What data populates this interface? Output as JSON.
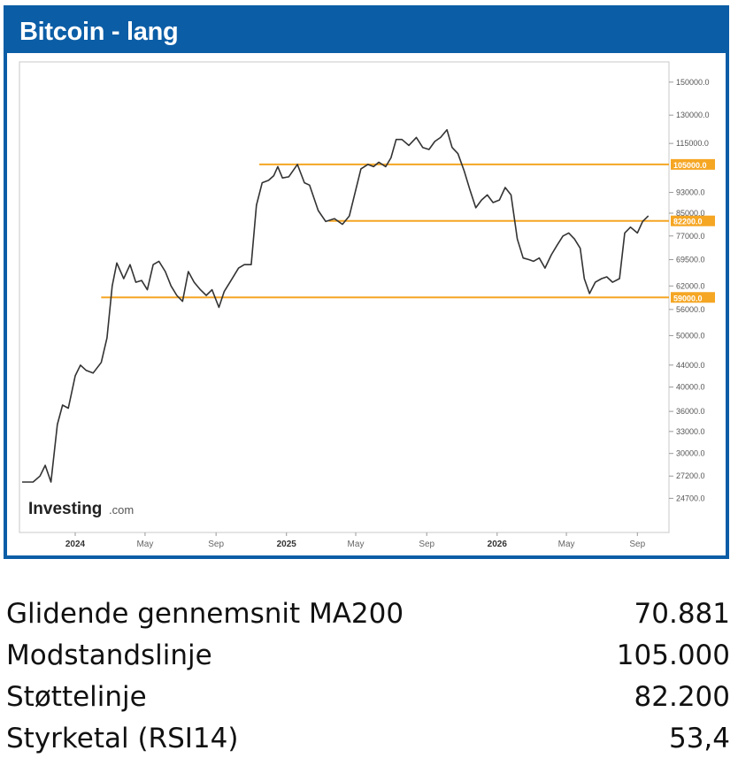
{
  "header": {
    "title": "Bitcoin - lang"
  },
  "branding": {
    "logo_text": "Investing",
    "logo_suffix": ".com"
  },
  "colors": {
    "frame": "#0b5da6",
    "level_line": "#f5a623",
    "price_line": "#333333"
  },
  "chart_data": {
    "type": "line",
    "title": "Bitcoin - lang",
    "xlabel": "",
    "ylabel": "",
    "y_scale": "log",
    "ylim": [
      23000,
      160000
    ],
    "x_range": [
      "2023-10-01",
      "2026-10-15"
    ],
    "x_ticks": [
      {
        "date": "2024-01-01",
        "label": "2024"
      },
      {
        "date": "2024-05-01",
        "label": "May"
      },
      {
        "date": "2024-09-01",
        "label": "Sep"
      },
      {
        "date": "2025-01-01",
        "label": "2025"
      },
      {
        "date": "2025-05-01",
        "label": "May"
      },
      {
        "date": "2025-09-01",
        "label": "Sep"
      },
      {
        "date": "2026-01-01",
        "label": "2026"
      },
      {
        "date": "2026-05-01",
        "label": "May"
      },
      {
        "date": "2026-09-01",
        "label": "Sep"
      }
    ],
    "y_ticks": [
      {
        "value": 150000,
        "label": "150000.0"
      },
      {
        "value": 130000,
        "label": "130000.0"
      },
      {
        "value": 115000,
        "label": "115000.0"
      },
      {
        "value": 93000,
        "label": "93000.0"
      },
      {
        "value": 85000,
        "label": "85000.0"
      },
      {
        "value": 77000,
        "label": "77000.0"
      },
      {
        "value": 69500,
        "label": "69500.0"
      },
      {
        "value": 62000,
        "label": "62000.0"
      },
      {
        "value": 56000,
        "label": "56000.0"
      },
      {
        "value": 50000,
        "label": "50000.0"
      },
      {
        "value": 44000,
        "label": "44000.0"
      },
      {
        "value": 40000,
        "label": "40000.0"
      },
      {
        "value": 36000,
        "label": "36000.0"
      },
      {
        "value": 33000,
        "label": "33000.0"
      },
      {
        "value": 30000,
        "label": "30000.0"
      },
      {
        "value": 27200,
        "label": "27200.0"
      },
      {
        "value": 24700,
        "label": "24700.0"
      }
    ],
    "levels": [
      {
        "value": 105000,
        "label": "105000.0",
        "start": "2024-11-15"
      },
      {
        "value": 82200,
        "label": "82200.0",
        "start": "2025-03-15"
      },
      {
        "value": 59000,
        "label": "59000.0",
        "start": "2024-02-15"
      }
    ],
    "series": [
      {
        "x": [
          "2023-10-01",
          "2023-10-20",
          "2023-11-01",
          "2023-11-10",
          "2023-11-20",
          "2023-12-01",
          "2023-12-10",
          "2023-12-20",
          "2024-01-01",
          "2024-01-10",
          "2024-01-20",
          "2024-02-01",
          "2024-02-15",
          "2024-02-25",
          "2024-03-05",
          "2024-03-13",
          "2024-03-25",
          "2024-04-05",
          "2024-04-15",
          "2024-04-25",
          "2024-05-05",
          "2024-05-15",
          "2024-05-25",
          "2024-06-05",
          "2024-06-15",
          "2024-06-25",
          "2024-07-05",
          "2024-07-15",
          "2024-07-25",
          "2024-08-05",
          "2024-08-15",
          "2024-08-25",
          "2024-09-06",
          "2024-09-15",
          "2024-09-27",
          "2024-10-10",
          "2024-10-20",
          "2024-11-01",
          "2024-11-10",
          "2024-11-20",
          "2024-12-01",
          "2024-12-10",
          "2024-12-17",
          "2024-12-25",
          "2025-01-05",
          "2025-01-20",
          "2025-02-01",
          "2025-02-10",
          "2025-02-25",
          "2025-03-10",
          "2025-03-25",
          "2025-04-08",
          "2025-04-20",
          "2025-05-01",
          "2025-05-10",
          "2025-05-22",
          "2025-06-01",
          "2025-06-10",
          "2025-06-22",
          "2025-07-01",
          "2025-07-10",
          "2025-07-20",
          "2025-08-01",
          "2025-08-14",
          "2025-08-25",
          "2025-09-05",
          "2025-09-15",
          "2025-09-25",
          "2025-10-06",
          "2025-10-15",
          "2025-10-25",
          "2025-11-05",
          "2025-11-15",
          "2025-11-25",
          "2025-12-05",
          "2025-12-15",
          "2025-12-25",
          "2026-01-05",
          "2026-01-15",
          "2026-01-25",
          "2026-02-05",
          "2026-02-15",
          "2026-02-25",
          "2026-03-05",
          "2026-03-15",
          "2026-03-25",
          "2026-04-05",
          "2026-04-15",
          "2026-04-25",
          "2026-05-05",
          "2026-05-15",
          "2026-05-25",
          "2026-06-01",
          "2026-06-10",
          "2026-06-20",
          "2026-07-01",
          "2026-07-10",
          "2026-07-20",
          "2026-08-01",
          "2026-08-10",
          "2026-08-20",
          "2026-09-01",
          "2026-09-10",
          "2026-09-20"
        ],
        "y": [
          26500,
          26500,
          27200,
          28500,
          26500,
          34000,
          37000,
          36500,
          42000,
          44000,
          43000,
          42500,
          44500,
          49500,
          62000,
          68500,
          64000,
          68000,
          63000,
          63500,
          61000,
          68000,
          69000,
          66000,
          62000,
          59500,
          58000,
          66000,
          63000,
          61000,
          59500,
          61000,
          56500,
          60500,
          63500,
          67000,
          68000,
          68000,
          88000,
          97000,
          98000,
          100000,
          104000,
          99000,
          99500,
          105000,
          97000,
          96000,
          86000,
          82000,
          83000,
          81000,
          84000,
          94000,
          103000,
          105000,
          104000,
          106000,
          104000,
          108000,
          117000,
          117000,
          114000,
          118000,
          113000,
          112000,
          116000,
          118000,
          122000,
          113000,
          110000,
          102000,
          94000,
          87000,
          90000,
          92000,
          89000,
          90000,
          95000,
          92000,
          76000,
          70000,
          69500,
          69000,
          70000,
          67000,
          71000,
          74000,
          77000,
          78000,
          76000,
          73000,
          64000,
          60000,
          63000,
          64000,
          64500,
          63000,
          64000,
          78000,
          80000,
          78000,
          82000,
          84000
        ]
      }
    ]
  },
  "stats": [
    {
      "label": "Glidende gennemsnit MA200",
      "value": "70.881"
    },
    {
      "label": "Modstandslinje",
      "value": "105.000"
    },
    {
      "label": "Støttelinje",
      "value": "82.200"
    },
    {
      "label": "Styrketal (RSI14)",
      "value": "53,4"
    }
  ]
}
